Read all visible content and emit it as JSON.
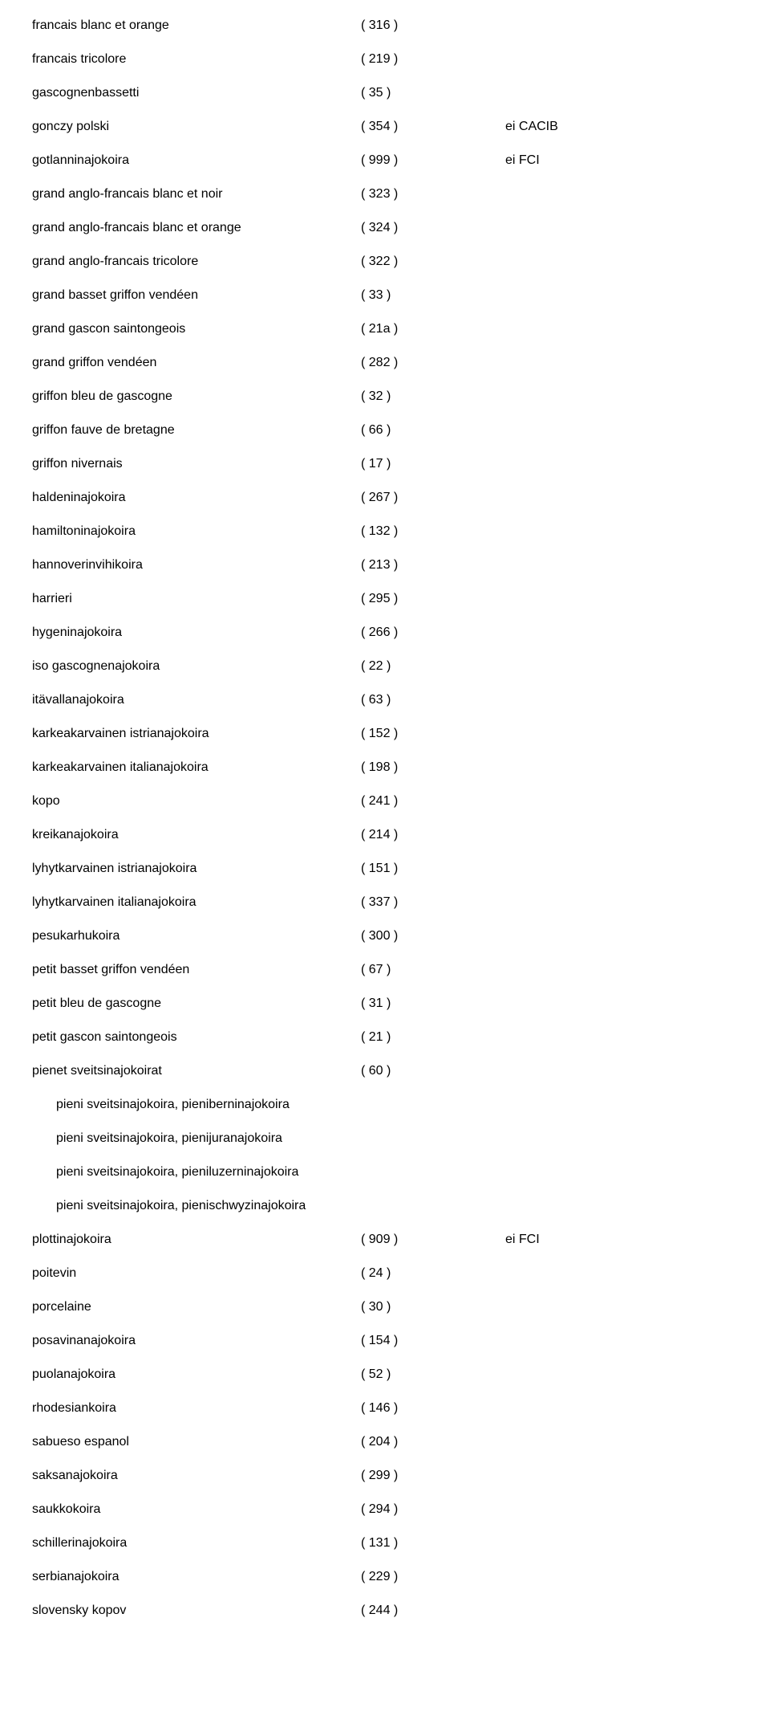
{
  "rows": [
    {
      "name": "francais blanc et orange",
      "code": "( 316 )",
      "note": ""
    },
    {
      "name": "francais tricolore",
      "code": "( 219 )",
      "note": ""
    },
    {
      "name": "gascognenbassetti",
      "code": "( 35 )",
      "note": ""
    },
    {
      "name": "gonczy polski",
      "code": "( 354 )",
      "note": "ei CACIB"
    },
    {
      "name": "gotlanninajokoira",
      "code": "( 999 )",
      "note": "ei FCI"
    },
    {
      "name": "grand anglo-francais blanc et noir",
      "code": "( 323 )",
      "note": ""
    },
    {
      "name": "grand anglo-francais blanc et orange",
      "code": "( 324 )",
      "note": ""
    },
    {
      "name": "grand anglo-francais tricolore",
      "code": "( 322 )",
      "note": ""
    },
    {
      "name": "grand basset griffon vendéen",
      "code": "( 33 )",
      "note": ""
    },
    {
      "name": "grand gascon saintongeois",
      "code": "( 21a )",
      "note": ""
    },
    {
      "name": "grand griffon vendéen",
      "code": "( 282 )",
      "note": ""
    },
    {
      "name": "griffon bleu de gascogne",
      "code": "( 32 )",
      "note": ""
    },
    {
      "name": "griffon fauve de bretagne",
      "code": "( 66 )",
      "note": ""
    },
    {
      "name": "griffon nivernais",
      "code": "( 17 )",
      "note": ""
    },
    {
      "name": "haldeninajokoira",
      "code": "( 267 )",
      "note": ""
    },
    {
      "name": "hamiltoninajokoira",
      "code": "( 132 )",
      "note": ""
    },
    {
      "name": "hannoverinvihikoira",
      "code": "( 213 )",
      "note": ""
    },
    {
      "name": "harrieri",
      "code": "( 295 )",
      "note": ""
    },
    {
      "name": "hygeninajokoira",
      "code": "( 266 )",
      "note": ""
    },
    {
      "name": "iso gascognenajokoira",
      "code": "( 22 )",
      "note": ""
    },
    {
      "name": "itävallanajokoira",
      "code": "( 63 )",
      "note": ""
    },
    {
      "name": "karkeakarvainen istrianajokoira",
      "code": "( 152 )",
      "note": ""
    },
    {
      "name": "karkeakarvainen italianajokoira",
      "code": "( 198 )",
      "note": ""
    },
    {
      "name": "kopo",
      "code": "( 241 )",
      "note": ""
    },
    {
      "name": "kreikanajokoira",
      "code": "( 214 )",
      "note": ""
    },
    {
      "name": "lyhytkarvainen istrianajokoira",
      "code": "( 151 )",
      "note": ""
    },
    {
      "name": "lyhytkarvainen italianajokoira",
      "code": "( 337 )",
      "note": ""
    },
    {
      "name": "pesukarhukoira",
      "code": "( 300 )",
      "note": ""
    },
    {
      "name": "petit basset griffon vendéen",
      "code": "( 67 )",
      "note": ""
    },
    {
      "name": "petit bleu de gascogne",
      "code": "( 31 )",
      "note": ""
    },
    {
      "name": "petit gascon saintongeois",
      "code": "( 21 )",
      "note": ""
    },
    {
      "name": "pienet sveitsinajokoirat",
      "code": "( 60 )",
      "note": ""
    },
    {
      "name": "pieni sveitsinajokoira, pieniberninajokoira",
      "code": "",
      "note": "",
      "sub": true
    },
    {
      "name": "pieni sveitsinajokoira, pienijuranajokoira",
      "code": "",
      "note": "",
      "sub": true
    },
    {
      "name": "pieni sveitsinajokoira, pieniluzerninajokoira",
      "code": "",
      "note": "",
      "sub": true
    },
    {
      "name": "pieni sveitsinajokoira, pienischwyzinajokoira",
      "code": "",
      "note": "",
      "sub": true
    },
    {
      "name": "plottinajokoira",
      "code": "( 909 )",
      "note": "ei FCI"
    },
    {
      "name": "poitevin",
      "code": "( 24 )",
      "note": ""
    },
    {
      "name": "porcelaine",
      "code": "( 30 )",
      "note": ""
    },
    {
      "name": "posavinanajokoira",
      "code": "( 154 )",
      "note": ""
    },
    {
      "name": "puolanajokoira",
      "code": "( 52 )",
      "note": ""
    },
    {
      "name": "rhodesiankoira",
      "code": "( 146 )",
      "note": ""
    },
    {
      "name": "sabueso espanol",
      "code": "( 204 )",
      "note": ""
    },
    {
      "name": "saksanajokoira",
      "code": "( 299 )",
      "note": ""
    },
    {
      "name": "saukkokoira",
      "code": "( 294 )",
      "note": ""
    },
    {
      "name": "schillerinajokoira",
      "code": "( 131 )",
      "note": ""
    },
    {
      "name": "serbianajokoira",
      "code": "( 229 )",
      "note": ""
    },
    {
      "name": "slovensky kopov",
      "code": "( 244 )",
      "note": ""
    }
  ]
}
